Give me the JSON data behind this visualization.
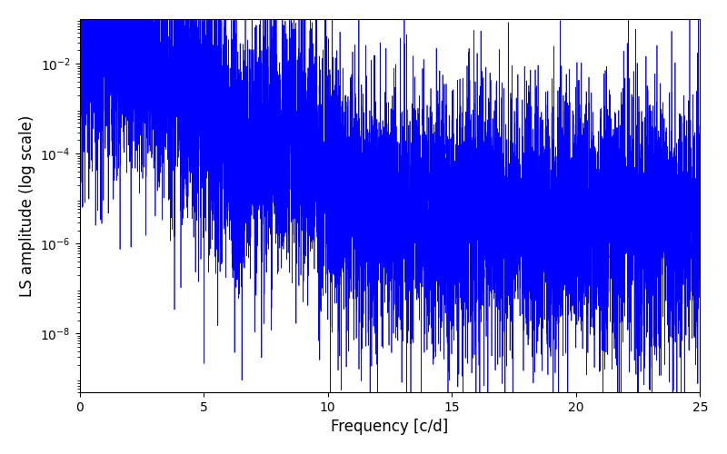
{
  "title": "",
  "xlabel": "Frequency [c/d]",
  "ylabel": "LS amplitude (log scale)",
  "xlim": [
    0,
    25
  ],
  "ylim": [
    5e-10,
    0.1
  ],
  "color": "#0000ff",
  "linewidth": 0.5,
  "figsize": [
    8.0,
    5.0
  ],
  "dpi": 100,
  "n_points": 8000,
  "freq_max": 25.0,
  "seed": 12345,
  "background": "#ffffff",
  "yticks": [
    1e-08,
    1e-06,
    0.0001,
    0.01
  ]
}
